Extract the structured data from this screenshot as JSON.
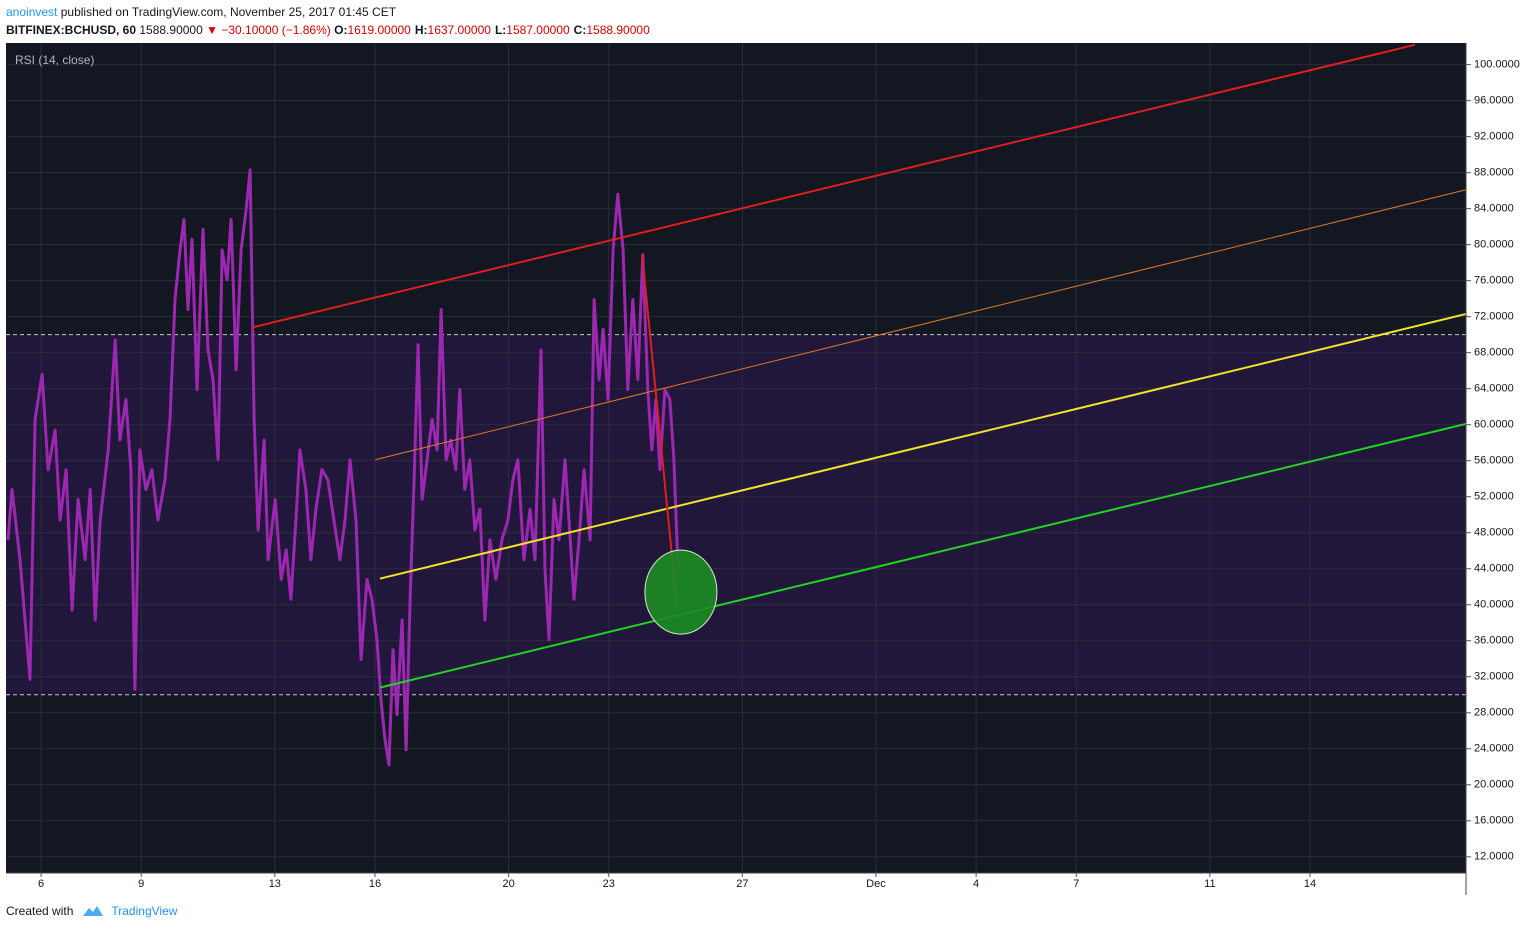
{
  "header": {
    "author": "anoinvest",
    "published": "published on TradingView.com, November 25, 2017 01:45 CET",
    "symbol": "BITFINEX:BCHUSD, 60",
    "last": "1588.90000",
    "arrow": "▼",
    "change": "−30.10000 (−1.86%)",
    "ohlc": [
      {
        "label": "O:",
        "value": "1619.00000"
      },
      {
        "label": "H:",
        "value": "1637.00000"
      },
      {
        "label": "L:",
        "value": "1587.00000"
      },
      {
        "label": "C:",
        "value": "1588.90000"
      }
    ]
  },
  "chart_data": {
    "type": "line",
    "title": "RSI (14, close)",
    "color": "#9c27b0",
    "x": [
      5.01,
      5.13,
      5.37,
      5.52,
      5.67,
      5.82,
      6.03,
      6.21,
      6.42,
      6.57,
      6.75,
      6.93,
      7.11,
      7.32,
      7.47,
      7.62,
      7.77,
      8.01,
      8.22,
      8.36,
      8.54,
      8.69,
      8.81,
      8.96,
      9.14,
      9.32,
      9.5,
      9.71,
      9.86,
      10.01,
      10.16,
      10.28,
      10.4,
      10.52,
      10.67,
      10.85,
      11.0,
      11.15,
      11.3,
      11.42,
      11.57,
      11.69,
      11.84,
      11.99,
      12.14,
      12.26,
      12.38,
      12.5,
      12.68,
      12.8,
      13.01,
      13.19,
      13.34,
      13.48,
      13.63,
      13.75,
      13.93,
      14.08,
      14.23,
      14.41,
      14.59,
      14.77,
      14.95,
      15.1,
      15.25,
      15.43,
      15.58,
      15.76,
      15.91,
      16.06,
      16.18,
      16.3,
      16.42,
      16.54,
      16.66,
      16.81,
      16.93,
      17.05,
      17.17,
      17.29,
      17.41,
      17.56,
      17.71,
      17.86,
      17.98,
      18.13,
      18.27,
      18.42,
      18.54,
      18.69,
      18.84,
      18.99,
      19.14,
      19.29,
      19.44,
      19.62,
      19.8,
      19.98,
      20.13,
      20.28,
      20.46,
      20.64,
      20.79,
      20.97,
      21.09,
      21.21,
      21.36,
      21.51,
      21.69,
      21.81,
      21.96,
      22.11,
      22.26,
      22.44,
      22.56,
      22.71,
      22.83,
      22.98,
      23.13,
      23.27,
      23.43,
      23.57,
      23.72,
      23.87,
      24.02,
      24.17,
      24.29,
      24.41,
      24.53,
      24.68,
      24.83,
      24.95,
      25.07
    ],
    "values": [
      47.2,
      52.8,
      45,
      38.3,
      31.7,
      60.6,
      65.6,
      55,
      59.4,
      49.4,
      55,
      39.4,
      51.7,
      45,
      52.8,
      38.3,
      49.4,
      57.2,
      69.4,
      58.3,
      62.8,
      55,
      30.6,
      57.2,
      52.8,
      55,
      49.4,
      53.9,
      60.6,
      73.9,
      79.4,
      82.8,
      72.8,
      80.6,
      63.9,
      81.7,
      68.3,
      65,
      56.1,
      79.4,
      76.1,
      82.8,
      66.1,
      79.4,
      83.9,
      88.3,
      60.6,
      48.3,
      58.3,
      45,
      51.7,
      42.8,
      46.1,
      40.6,
      49.4,
      57.2,
      52.8,
      45,
      50.6,
      55,
      53.9,
      49.4,
      45,
      49.4,
      56.1,
      49.4,
      33.9,
      42.8,
      40.6,
      36.1,
      29.4,
      25,
      22.2,
      35,
      27.8,
      38.3,
      23.9,
      40.6,
      53.9,
      68.9,
      51.7,
      56.1,
      60.6,
      57.2,
      72.8,
      56.1,
      58.3,
      55,
      63.9,
      52.8,
      56.1,
      48.3,
      50.6,
      38.3,
      47.2,
      42.8,
      47.2,
      49.4,
      53.9,
      56.1,
      45,
      50.6,
      45,
      68.3,
      43.9,
      36.1,
      51.7,
      47.2,
      56.1,
      49.4,
      40.6,
      47.2,
      55,
      47.2,
      73.9,
      65,
      70.6,
      62.8,
      79.4,
      85.6,
      79.4,
      63.9,
      73.9,
      65,
      78.9,
      63.9,
      57.2,
      62.8,
      55,
      63.9,
      62.8,
      56.1,
      44.4
    ],
    "xlim": [
      4.95,
      48.67
    ],
    "xticks": [
      6,
      9,
      13,
      16,
      20,
      23,
      27,
      {
        "value": 31,
        "label": "Dec"
      },
      {
        "value": 34,
        "label": "4"
      },
      {
        "value": 37,
        "label": "7"
      },
      {
        "value": 41,
        "label": "11"
      },
      {
        "value": 44,
        "label": "14"
      }
    ],
    "ylim": [
      10.2,
      102.4
    ],
    "yticks": [
      {
        "value": 12,
        "label": "12.0000"
      },
      {
        "value": 16,
        "label": "16.0000"
      },
      {
        "value": 20,
        "label": "20.0000"
      },
      {
        "value": 24,
        "label": "24.0000"
      },
      {
        "value": 28,
        "label": "28.0000"
      },
      {
        "value": 32,
        "label": "32.0000"
      },
      {
        "value": 36,
        "label": "36.0000"
      },
      {
        "value": 40,
        "label": "40.0000"
      },
      {
        "value": 44,
        "label": "44.0000"
      },
      {
        "value": 48,
        "label": "48.0000"
      },
      {
        "value": 52,
        "label": "52.0000"
      },
      {
        "value": 56,
        "label": "56.0000"
      },
      {
        "value": 60,
        "label": "60.0000"
      },
      {
        "value": 64,
        "label": "64.0000"
      },
      {
        "value": 68,
        "label": "68.0000"
      },
      {
        "value": 72,
        "label": "72.0000"
      },
      {
        "value": 76,
        "label": "76.0000"
      },
      {
        "value": 80,
        "label": "80.0000"
      },
      {
        "value": 84,
        "label": "84.0000"
      },
      {
        "value": 88,
        "label": "88.0000"
      },
      {
        "value": 92,
        "label": "92.0000"
      },
      {
        "value": 96,
        "label": "96.0000"
      },
      {
        "value": 100,
        "label": "100.0000"
      }
    ],
    "grid": true,
    "levels": [
      70,
      30
    ],
    "band_color": "#21173a",
    "trendlines": [
      {
        "color": "#e01e1e",
        "x": [
          12.32,
          47.14
        ],
        "y": [
          70.8,
          102.2
        ]
      },
      {
        "color": "#e07820",
        "x": [
          16.0,
          48.67
        ],
        "y": [
          56.1,
          86.1
        ]
      },
      {
        "color": "#f2e22a",
        "x": [
          16.15,
          48.67
        ],
        "y": [
          42.9,
          72.3
        ]
      },
      {
        "color": "#22d222",
        "x": [
          16.15,
          48.67
        ],
        "y": [
          30.8,
          60.1
        ]
      },
      {
        "color": "#e01e1e",
        "x": [
          24.0,
          25.04
        ],
        "y": [
          78.9,
          39.9
        ]
      }
    ],
    "marker": {
      "x": 25.16,
      "y": 41.4,
      "color": "#1c8c22"
    }
  },
  "footer": {
    "created": "Created with",
    "brand": "TradingView"
  }
}
